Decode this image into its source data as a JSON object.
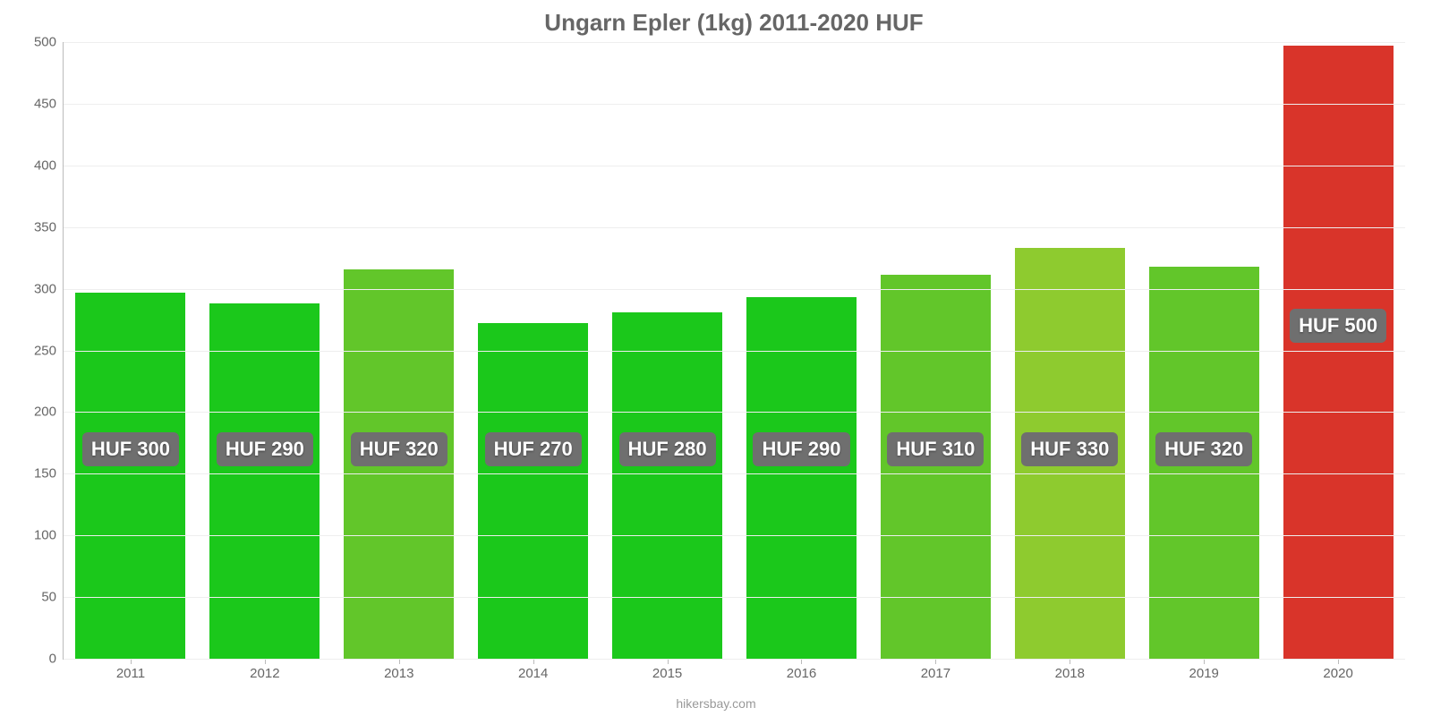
{
  "chart": {
    "type": "bar",
    "title": "Ungarn Epler (1kg) 2011-2020 HUF",
    "title_fontsize": 26,
    "title_color": "#666666",
    "background_color": "#ffffff",
    "grid_color": "#eeeeee",
    "axis_color": "#bbbbbb",
    "tick_label_color": "#666666",
    "tick_label_fontsize": 15,
    "x_label_fontsize": 15,
    "data_label_fontsize": 22,
    "data_label_bg": "#6f6f6f",
    "data_label_color": "#ffffff",
    "credit": "hikersbay.com",
    "credit_fontsize": 14,
    "credit_color": "#999999",
    "ylim": [
      0,
      500
    ],
    "yticks": [
      0,
      50,
      100,
      150,
      200,
      250,
      300,
      350,
      400,
      450,
      500
    ],
    "data_label_y_value": 170,
    "data_label_y_value_alt": 270,
    "bar_width": 0.82,
    "categories": [
      "2011",
      "2012",
      "2013",
      "2014",
      "2015",
      "2016",
      "2017",
      "2018",
      "2019",
      "2020"
    ],
    "values": [
      297,
      288,
      316,
      272,
      281,
      293,
      311,
      333,
      318,
      497
    ],
    "value_labels": [
      "HUF 300",
      "HUF 290",
      "HUF 320",
      "HUF 270",
      "HUF 280",
      "HUF 290",
      "HUF 310",
      "HUF 330",
      "HUF 320",
      "HUF 500"
    ],
    "bar_colors": [
      "#1bc81b",
      "#1bc81b",
      "#62c62a",
      "#1bc81b",
      "#1bc81b",
      "#1bc81b",
      "#62c62a",
      "#8ecb2f",
      "#62c62a",
      "#d9342a"
    ],
    "label_uses_alt_y": [
      false,
      false,
      false,
      false,
      false,
      false,
      false,
      false,
      false,
      true
    ]
  }
}
